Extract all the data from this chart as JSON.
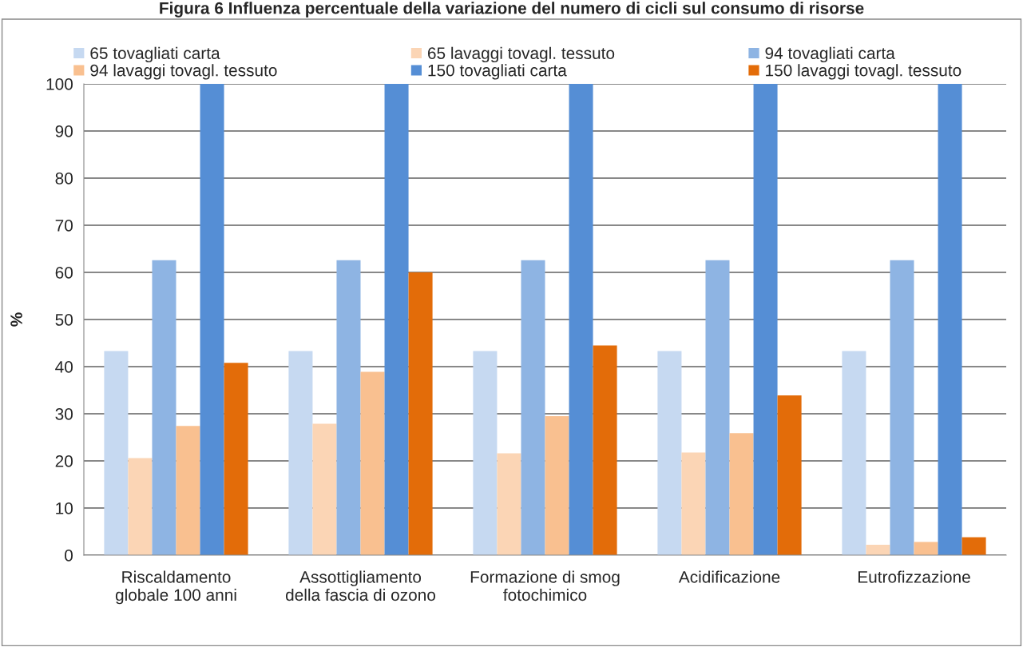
{
  "chart_data": {
    "type": "bar",
    "title": "Figura 6 Influenza percentuale della variazione del numero di cicli sul consumo di risorse",
    "ylabel": "%",
    "categories": [
      "Riscaldamento\nglobale 100 anni",
      "Assottigliamento\ndella fascia di ozono",
      "Formazione di smog\nfotochimico",
      "Acidificazione",
      "Eutrofizzazione"
    ],
    "series": [
      {
        "name": "65 tovagliati carta",
        "color": "#c6d9f1",
        "values": [
          43.3,
          43.3,
          43.3,
          43.3,
          43.3
        ]
      },
      {
        "name": "65 lavaggi tovagl. tessuto",
        "color": "#fbd5b5",
        "values": [
          20.6,
          27.9,
          21.6,
          21.8,
          2.2
        ]
      },
      {
        "name": "94 tovagliati carta",
        "color": "#8eb4e3",
        "values": [
          62.6,
          62.6,
          62.6,
          62.6,
          62.6
        ]
      },
      {
        "name": "94 lavaggi tovagl. tessuto",
        "color": "#f9c090",
        "values": [
          27.4,
          38.9,
          29.5,
          25.9,
          2.8
        ]
      },
      {
        "name": "150 tovagliati carta",
        "color": "#558ed5",
        "values": [
          100,
          100,
          100,
          100,
          100
        ]
      },
      {
        "name": "150 lavaggi tovagl. tessuto",
        "color": "#e36c09",
        "values": [
          40.8,
          60,
          44.5,
          33.9,
          3.8
        ]
      }
    ],
    "ylim": [
      0,
      100
    ],
    "yticks": [
      0,
      10,
      20,
      30,
      40,
      50,
      60,
      70,
      80,
      90,
      100
    ],
    "grid": "y",
    "legend": "top"
  }
}
